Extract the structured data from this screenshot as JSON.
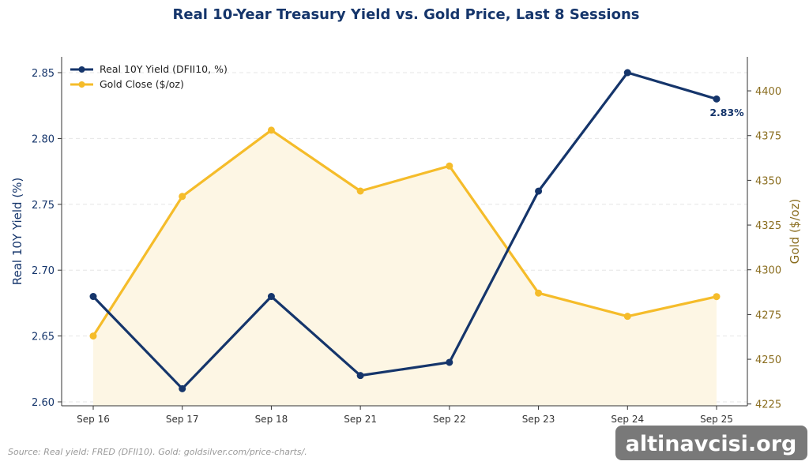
{
  "chart_data": {
    "type": "line",
    "title": "Real 10-Year Treasury Yield vs. Gold Price, Last 8 Sessions",
    "categories": [
      "Sep 16",
      "Sep 17",
      "Sep 18",
      "Sep 21",
      "Sep 22",
      "Sep 23",
      "Sep 24",
      "Sep 25"
    ],
    "series": [
      {
        "name": "Real 10Y Yield (DFII10, %)",
        "axis": "left",
        "color": "#15356b",
        "values": [
          2.68,
          2.61,
          2.68,
          2.62,
          2.63,
          2.76,
          2.85,
          2.83
        ]
      },
      {
        "name": "Gold Close ($/oz)",
        "axis": "right",
        "color": "#f5bc2a",
        "fill": "#fdf6e4",
        "values": [
          4263,
          4341,
          4378,
          4344,
          4358,
          4287,
          4274,
          4285
        ]
      }
    ],
    "ylabel_left": "Real 10Y Yield (%)",
    "ylabel_right": "Gold ($/oz)",
    "ylim_left": [
      2.597,
      2.862
    ],
    "ylim_right": [
      4224,
      4419
    ],
    "yticks_left": [
      "2.60",
      "2.65",
      "2.70",
      "2.75",
      "2.80",
      "2.85"
    ],
    "yticks_right": [
      "4225",
      "4250",
      "4275",
      "4300",
      "4325",
      "4350",
      "4375",
      "4400"
    ],
    "left_axis_color": "#15356b",
    "right_axis_color": "#8a6d1f",
    "grid": true,
    "legend_position": "top-left",
    "annotation": "2.83%",
    "source": "Source: Real yield: FRED (DFII10). Gold: goldsilver.com/price-charts/.",
    "watermark": "altinavcisi.org"
  }
}
